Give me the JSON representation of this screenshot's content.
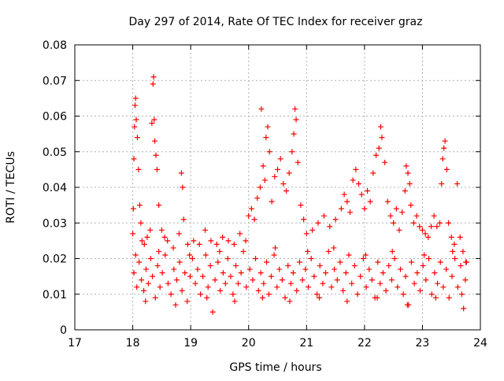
{
  "chart_data": {
    "type": "scatter",
    "title": "Day 297 of 2014, Rate Of TEC Index for receiver graz",
    "xlabel": "GPS time / hours",
    "ylabel": "ROTI / TECUs",
    "xlim": [
      17,
      24
    ],
    "ylim": [
      0,
      0.08
    ],
    "xticks": [
      17,
      18,
      19,
      20,
      21,
      22,
      23,
      24
    ],
    "yticks": [
      0,
      0.01,
      0.02,
      0.03,
      0.04,
      0.05,
      0.06,
      0.07,
      0.08
    ],
    "xtick_labels": [
      "17",
      "18",
      "19",
      "20",
      "21",
      "22",
      "23",
      "24"
    ],
    "ytick_labels": [
      "0",
      "0.01",
      "0.02",
      "0.03",
      "0.04",
      "0.05",
      "0.06",
      "0.07",
      "0.08"
    ],
    "grid": true,
    "marker": "+",
    "series": [
      {
        "name": "ROTI",
        "color": "#ff0000",
        "points": [
          [
            18.0,
            0.027
          ],
          [
            18.01,
            0.034
          ],
          [
            18.02,
            0.048
          ],
          [
            18.03,
            0.057
          ],
          [
            18.04,
            0.063
          ],
          [
            18.05,
            0.065
          ],
          [
            18.06,
            0.059
          ],
          [
            18.08,
            0.054
          ],
          [
            18.1,
            0.045
          ],
          [
            18.12,
            0.035
          ],
          [
            18.14,
            0.03
          ],
          [
            18.16,
            0.025
          ],
          [
            18.2,
            0.024
          ],
          [
            18.25,
            0.026
          ],
          [
            18.3,
            0.028
          ],
          [
            18.33,
            0.058
          ],
          [
            18.35,
            0.069
          ],
          [
            18.36,
            0.071
          ],
          [
            18.37,
            0.059
          ],
          [
            18.38,
            0.053
          ],
          [
            18.4,
            0.049
          ],
          [
            18.42,
            0.045
          ],
          [
            18.45,
            0.035
          ],
          [
            18.5,
            0.028
          ],
          [
            18.55,
            0.026
          ],
          [
            18.6,
            0.025
          ],
          [
            18.7,
            0.023
          ],
          [
            18.8,
            0.027
          ],
          [
            18.84,
            0.044
          ],
          [
            18.86,
            0.04
          ],
          [
            18.88,
            0.031
          ],
          [
            18.95,
            0.024
          ],
          [
            19.05,
            0.025
          ],
          [
            19.15,
            0.024
          ],
          [
            19.25,
            0.028
          ],
          [
            19.35,
            0.025
          ],
          [
            19.45,
            0.024
          ],
          [
            19.55,
            0.026
          ],
          [
            19.65,
            0.025
          ],
          [
            19.75,
            0.024
          ],
          [
            19.85,
            0.027
          ],
          [
            19.95,
            0.025
          ],
          [
            20.0,
            0.032
          ],
          [
            20.05,
            0.034
          ],
          [
            20.1,
            0.031
          ],
          [
            20.15,
            0.037
          ],
          [
            20.2,
            0.04
          ],
          [
            20.22,
            0.062
          ],
          [
            20.25,
            0.046
          ],
          [
            20.28,
            0.042
          ],
          [
            20.3,
            0.054
          ],
          [
            20.33,
            0.057
          ],
          [
            20.36,
            0.05
          ],
          [
            20.4,
            0.036
          ],
          [
            20.45,
            0.043
          ],
          [
            20.5,
            0.045
          ],
          [
            20.55,
            0.048
          ],
          [
            20.6,
            0.041
          ],
          [
            20.65,
            0.039
          ],
          [
            20.7,
            0.044
          ],
          [
            20.75,
            0.05
          ],
          [
            20.78,
            0.055
          ],
          [
            20.8,
            0.062
          ],
          [
            20.82,
            0.059
          ],
          [
            20.85,
            0.047
          ],
          [
            20.9,
            0.035
          ],
          [
            20.95,
            0.031
          ],
          [
            21.0,
            0.027
          ],
          [
            21.1,
            0.028
          ],
          [
            21.2,
            0.03
          ],
          [
            21.3,
            0.032
          ],
          [
            21.4,
            0.029
          ],
          [
            21.5,
            0.031
          ],
          [
            21.6,
            0.034
          ],
          [
            21.65,
            0.038
          ],
          [
            21.7,
            0.036
          ],
          [
            21.75,
            0.033
          ],
          [
            21.8,
            0.042
          ],
          [
            21.85,
            0.045
          ],
          [
            21.9,
            0.041
          ],
          [
            21.95,
            0.038
          ],
          [
            22.0,
            0.034
          ],
          [
            22.05,
            0.039
          ],
          [
            22.1,
            0.036
          ],
          [
            22.15,
            0.044
          ],
          [
            22.2,
            0.049
          ],
          [
            22.25,
            0.051
          ],
          [
            22.28,
            0.057
          ],
          [
            22.3,
            0.054
          ],
          [
            22.35,
            0.047
          ],
          [
            22.4,
            0.036
          ],
          [
            22.45,
            0.032
          ],
          [
            22.5,
            0.03
          ],
          [
            22.55,
            0.034
          ],
          [
            22.6,
            0.028
          ],
          [
            22.65,
            0.033
          ],
          [
            22.7,
            0.039
          ],
          [
            22.72,
            0.046
          ],
          [
            22.75,
            0.044
          ],
          [
            22.78,
            0.041
          ],
          [
            22.8,
            0.035
          ],
          [
            22.85,
            0.03
          ],
          [
            22.9,
            0.032
          ],
          [
            22.95,
            0.029
          ],
          [
            23.0,
            0.028
          ],
          [
            23.05,
            0.027
          ],
          [
            23.1,
            0.026
          ],
          [
            23.15,
            0.029
          ],
          [
            23.2,
            0.032
          ],
          [
            23.25,
            0.029
          ],
          [
            23.3,
            0.03
          ],
          [
            23.33,
            0.041
          ],
          [
            23.35,
            0.048
          ],
          [
            23.37,
            0.051
          ],
          [
            23.39,
            0.053
          ],
          [
            23.42,
            0.045
          ],
          [
            23.45,
            0.03
          ],
          [
            23.5,
            0.026
          ],
          [
            23.55,
            0.024
          ],
          [
            23.6,
            0.041
          ],
          [
            23.65,
            0.026
          ],
          [
            23.7,
            0.022
          ],
          [
            23.75,
            0.019
          ],
          [
            18.02,
            0.016
          ],
          [
            18.07,
            0.012
          ],
          [
            18.11,
            0.019
          ],
          [
            18.15,
            0.014
          ],
          [
            18.19,
            0.011
          ],
          [
            18.23,
            0.017
          ],
          [
            18.27,
            0.013
          ],
          [
            18.31,
            0.02
          ],
          [
            18.34,
            0.015
          ],
          [
            18.39,
            0.009
          ],
          [
            18.43,
            0.018
          ],
          [
            18.47,
            0.012
          ],
          [
            18.51,
            0.016
          ],
          [
            18.56,
            0.021
          ],
          [
            18.61,
            0.013
          ],
          [
            18.66,
            0.01
          ],
          [
            18.71,
            0.017
          ],
          [
            18.76,
            0.014
          ],
          [
            18.81,
            0.019
          ],
          [
            18.85,
            0.011
          ],
          [
            18.9,
            0.016
          ],
          [
            18.94,
            0.008
          ],
          [
            18.99,
            0.015
          ],
          [
            19.03,
            0.02
          ],
          [
            19.08,
            0.013
          ],
          [
            19.12,
            0.017
          ],
          [
            19.17,
            0.01
          ],
          [
            19.21,
            0.015
          ],
          [
            19.26,
            0.021
          ],
          [
            19.3,
            0.012
          ],
          [
            19.34,
            0.018
          ],
          [
            19.38,
            0.005
          ],
          [
            19.42,
            0.014
          ],
          [
            19.47,
            0.019
          ],
          [
            19.51,
            0.011
          ],
          [
            19.56,
            0.016
          ],
          [
            19.6,
            0.013
          ],
          [
            19.64,
            0.02
          ],
          [
            19.69,
            0.015
          ],
          [
            19.73,
            0.01
          ],
          [
            19.78,
            0.018
          ],
          [
            19.82,
            0.013
          ],
          [
            19.87,
            0.016
          ],
          [
            19.91,
            0.022
          ],
          [
            19.96,
            0.012
          ],
          [
            20.02,
            0.017
          ],
          [
            20.07,
            0.014
          ],
          [
            20.12,
            0.02
          ],
          [
            20.17,
            0.011
          ],
          [
            20.21,
            0.016
          ],
          [
            20.26,
            0.013
          ],
          [
            20.31,
            0.019
          ],
          [
            20.35,
            0.01
          ],
          [
            20.39,
            0.015
          ],
          [
            20.44,
            0.021
          ],
          [
            20.49,
            0.012
          ],
          [
            20.53,
            0.017
          ],
          [
            20.58,
            0.014
          ],
          [
            20.63,
            0.009
          ],
          [
            20.68,
            0.018
          ],
          [
            20.73,
            0.013
          ],
          [
            20.77,
            0.016
          ],
          [
            20.83,
            0.011
          ],
          [
            20.88,
            0.019
          ],
          [
            20.93,
            0.014
          ],
          [
            20.98,
            0.017
          ],
          [
            21.03,
            0.012
          ],
          [
            21.08,
            0.02
          ],
          [
            21.13,
            0.015
          ],
          [
            21.18,
            0.01
          ],
          [
            21.23,
            0.018
          ],
          [
            21.28,
            0.013
          ],
          [
            21.33,
            0.016
          ],
          [
            21.38,
            0.022
          ],
          [
            21.43,
            0.012
          ],
          [
            21.48,
            0.017
          ],
          [
            21.53,
            0.014
          ],
          [
            21.58,
            0.019
          ],
          [
            21.63,
            0.011
          ],
          [
            21.68,
            0.016
          ],
          [
            21.73,
            0.021
          ],
          [
            21.78,
            0.013
          ],
          [
            21.83,
            0.018
          ],
          [
            21.88,
            0.01
          ],
          [
            21.93,
            0.015
          ],
          [
            21.98,
            0.02
          ],
          [
            22.03,
            0.012
          ],
          [
            22.08,
            0.017
          ],
          [
            22.13,
            0.014
          ],
          [
            22.18,
            0.009
          ],
          [
            22.23,
            0.019
          ],
          [
            22.27,
            0.013
          ],
          [
            22.32,
            0.016
          ],
          [
            22.37,
            0.011
          ],
          [
            22.42,
            0.018
          ],
          [
            22.47,
            0.014
          ],
          [
            22.52,
            0.02
          ],
          [
            22.57,
            0.012
          ],
          [
            22.62,
            0.017
          ],
          [
            22.67,
            0.01
          ],
          [
            22.71,
            0.015
          ],
          [
            22.76,
            0.007
          ],
          [
            22.81,
            0.019
          ],
          [
            22.86,
            0.013
          ],
          [
            22.91,
            0.016
          ],
          [
            22.96,
            0.011
          ],
          [
            23.01,
            0.018
          ],
          [
            23.06,
            0.014
          ],
          [
            23.11,
            0.02
          ],
          [
            23.16,
            0.01
          ],
          [
            23.21,
            0.016
          ],
          [
            23.26,
            0.013
          ],
          [
            23.31,
            0.019
          ],
          [
            23.36,
            0.012
          ],
          [
            23.41,
            0.017
          ],
          [
            23.46,
            0.009
          ],
          [
            23.51,
            0.015
          ],
          [
            23.56,
            0.02
          ],
          [
            23.61,
            0.012
          ],
          [
            23.66,
            0.018
          ],
          [
            23.71,
            0.006
          ],
          [
            23.74,
            0.014
          ],
          [
            23.76,
            0.019
          ],
          [
            18.05,
            0.021
          ],
          [
            18.45,
            0.022
          ],
          [
            18.98,
            0.021
          ],
          [
            19.5,
            0.022
          ],
          [
            20.46,
            0.023
          ],
          [
            21.02,
            0.022
          ],
          [
            21.47,
            0.023
          ],
          [
            22.02,
            0.021
          ],
          [
            22.48,
            0.022
          ],
          [
            23.03,
            0.021
          ],
          [
            23.52,
            0.022
          ],
          [
            18.22,
            0.008
          ],
          [
            18.74,
            0.007
          ],
          [
            19.28,
            0.009
          ],
          [
            19.76,
            0.008
          ],
          [
            20.24,
            0.009
          ],
          [
            20.71,
            0.008
          ],
          [
            21.22,
            0.009
          ],
          [
            21.7,
            0.008
          ],
          [
            22.22,
            0.009
          ],
          [
            22.74,
            0.007
          ],
          [
            23.23,
            0.009
          ],
          [
            23.68,
            0.01
          ]
        ]
      }
    ]
  }
}
